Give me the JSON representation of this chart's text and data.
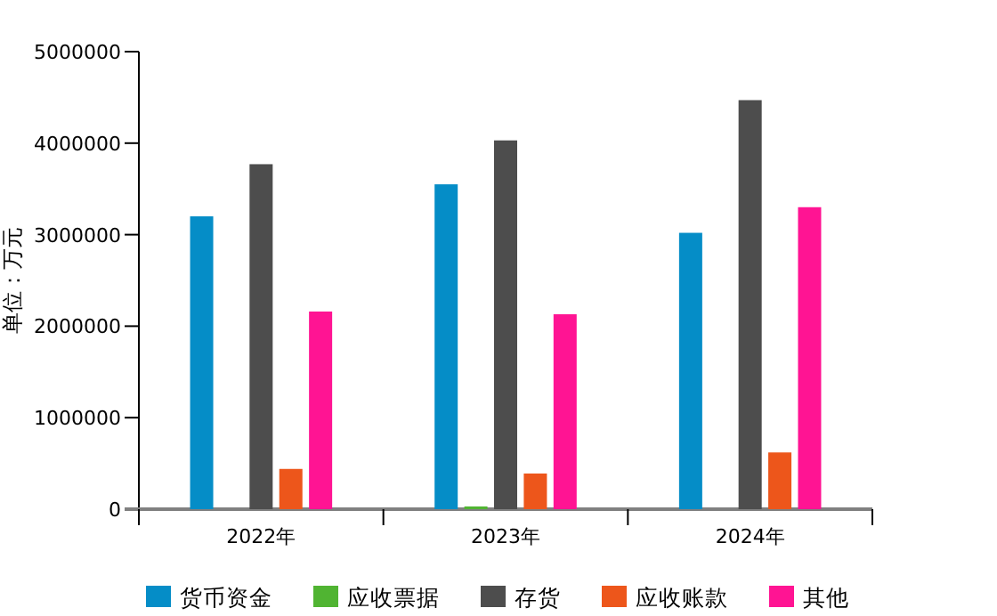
{
  "chart_data": {
    "type": "bar",
    "ylabel": "单位：万元",
    "categories": [
      "2022年",
      "2023年",
      "2024年"
    ],
    "series": [
      {
        "name": "货币资金",
        "color": "#058dc7",
        "values": [
          3200000,
          3550000,
          3020000
        ]
      },
      {
        "name": "应收票据",
        "color": "#50b432",
        "values": [
          null,
          30000,
          null
        ]
      },
      {
        "name": "存货",
        "color": "#4d4d4d",
        "values": [
          3770000,
          4030000,
          4470000
        ]
      },
      {
        "name": "应收账款",
        "color": "#ed561b",
        "values": [
          440000,
          390000,
          620000
        ]
      },
      {
        "name": "其他",
        "color": "#ff1493",
        "values": [
          2160000,
          2130000,
          3300000
        ]
      }
    ],
    "ylim": [
      0,
      5000000
    ],
    "yticks": [
      0,
      1000000,
      2000000,
      3000000,
      4000000,
      5000000
    ],
    "grid": false,
    "legend": "bottom"
  }
}
